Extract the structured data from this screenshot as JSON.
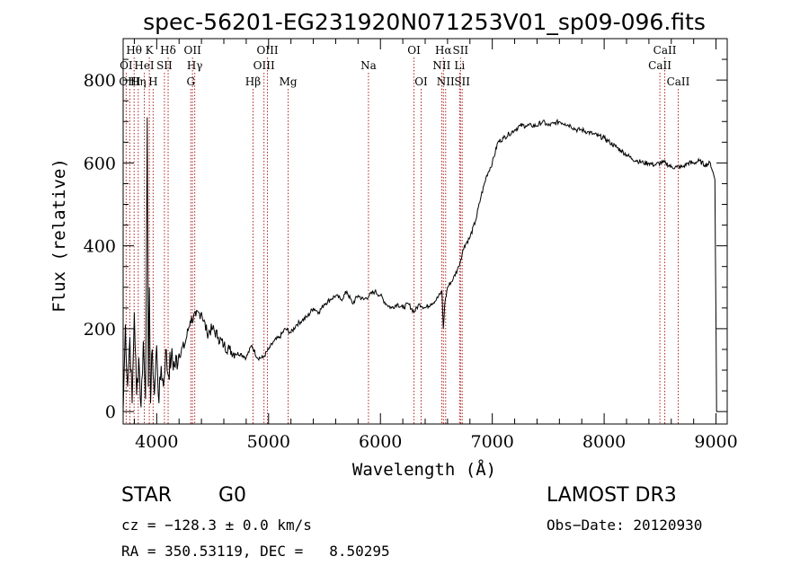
{
  "chart_data": {
    "type": "line",
    "title": "spec-56201-EG231920N071253V01_sp09-096.fits",
    "xlabel": "Wavelength (Å)",
    "ylabel": "Flux (relative)",
    "xlim": [
      3700,
      9100
    ],
    "ylim": [
      -30,
      900
    ],
    "x_ticks": [
      4000,
      5000,
      6000,
      7000,
      8000,
      9000
    ],
    "y_ticks": [
      0,
      200,
      400,
      600,
      800
    ],
    "series": [
      {
        "name": "flux",
        "color": "#000000",
        "x": [
          3700,
          3720,
          3740,
          3760,
          3780,
          3800,
          3820,
          3840,
          3860,
          3880,
          3900,
          3915,
          3925,
          3935,
          3945,
          3960,
          3980,
          4000,
          4020,
          4040,
          4060,
          4080,
          4100,
          4130,
          4160,
          4200,
          4250,
          4300,
          4350,
          4400,
          4450,
          4500,
          4550,
          4600,
          4650,
          4700,
          4750,
          4800,
          4850,
          4900,
          4950,
          5000,
          5050,
          5100,
          5150,
          5200,
          5250,
          5300,
          5350,
          5400,
          5450,
          5500,
          5550,
          5600,
          5650,
          5700,
          5750,
          5800,
          5850,
          5900,
          5950,
          6000,
          6050,
          6100,
          6150,
          6200,
          6250,
          6300,
          6350,
          6400,
          6450,
          6500,
          6550,
          6562,
          6575,
          6600,
          6650,
          6700,
          6750,
          6800,
          6850,
          6900,
          6950,
          7000,
          7050,
          7100,
          7150,
          7200,
          7250,
          7300,
          7350,
          7400,
          7450,
          7500,
          7550,
          7600,
          7650,
          7700,
          7750,
          7800,
          7850,
          7900,
          7950,
          8000,
          8050,
          8100,
          8150,
          8200,
          8250,
          8300,
          8350,
          8400,
          8450,
          8500,
          8550,
          8600,
          8650,
          8700,
          8750,
          8800,
          8850,
          8900,
          8950,
          8990,
          9000,
          9005
        ],
        "y": [
          0,
          210,
          60,
          180,
          20,
          240,
          40,
          130,
          10,
          170,
          30,
          710,
          60,
          300,
          20,
          150,
          40,
          160,
          20,
          110,
          60,
          150,
          90,
          130,
          110,
          140,
          160,
          220,
          230,
          240,
          190,
          200,
          180,
          160,
          150,
          140,
          140,
          130,
          160,
          130,
          130,
          150,
          170,
          180,
          200,
          190,
          210,
          220,
          230,
          250,
          240,
          260,
          270,
          280,
          270,
          290,
          260,
          280,
          270,
          280,
          290,
          280,
          260,
          250,
          260,
          250,
          260,
          240,
          260,
          250,
          260,
          270,
          290,
          200,
          260,
          300,
          320,
          350,
          400,
          420,
          460,
          520,
          570,
          600,
          650,
          660,
          670,
          680,
          690,
          690,
          690,
          690,
          700,
          690,
          695,
          700,
          695,
          690,
          680,
          680,
          675,
          670,
          665,
          660,
          650,
          640,
          630,
          620,
          610,
          605,
          600,
          600,
          595,
          600,
          600,
          590,
          590,
          590,
          600,
          600,
          605,
          595,
          600,
          560,
          200,
          0
        ]
      }
    ],
    "spectral_lines": [
      {
        "label": "Hθ",
        "x": 3798,
        "row": 0
      },
      {
        "label": "K",
        "x": 3934,
        "row": 0
      },
      {
        "label": "Hδ",
        "x": 4102,
        "row": 0
      },
      {
        "label": "OII",
        "x": 4320,
        "row": 0
      },
      {
        "label": "OIII",
        "x": 4990,
        "row": 0
      },
      {
        "label": "OI",
        "x": 6300,
        "row": 0
      },
      {
        "label": "Hα",
        "x": 6563,
        "row": 0
      },
      {
        "label": "SII",
        "x": 6716,
        "row": 0
      },
      {
        "label": "CaII",
        "x": 8542,
        "row": 0
      },
      {
        "label": "OI",
        "x": 3727,
        "row": 1
      },
      {
        "label": "HeI",
        "x": 3889,
        "row": 1
      },
      {
        "label": "SII",
        "x": 4069,
        "row": 1
      },
      {
        "label": "Hγ",
        "x": 4340,
        "row": 1
      },
      {
        "label": "OIII",
        "x": 4959,
        "row": 1
      },
      {
        "label": "Na",
        "x": 5893,
        "row": 1
      },
      {
        "label": "NII",
        "x": 6548,
        "row": 1
      },
      {
        "label": "Li",
        "x": 6708,
        "row": 1
      },
      {
        "label": "CaII",
        "x": 8498,
        "row": 1
      },
      {
        "label": "OIII",
        "x": 3760,
        "row": 2
      },
      {
        "label": "Hη",
        "x": 3835,
        "row": 2
      },
      {
        "label": "H",
        "x": 3968,
        "row": 2
      },
      {
        "label": "G",
        "x": 4305,
        "row": 2
      },
      {
        "label": "Hβ",
        "x": 4861,
        "row": 2
      },
      {
        "label": "Mg",
        "x": 5175,
        "row": 2
      },
      {
        "label": "OI",
        "x": 6364,
        "row": 2
      },
      {
        "label": "NII",
        "x": 6583,
        "row": 2
      },
      {
        "label": "SII",
        "x": 6731,
        "row": 2
      },
      {
        "label": "CaII",
        "x": 8662,
        "row": 2
      }
    ]
  },
  "footer": {
    "object_class": "STAR",
    "subclass": "G0",
    "survey": "LAMOST DR3",
    "redshift": "cz = −128.3 ± 0.0 km/s",
    "obs_date": "Obs−Date: 20120930",
    "coords": "RA = 350.53119, DEC =   8.50295"
  }
}
